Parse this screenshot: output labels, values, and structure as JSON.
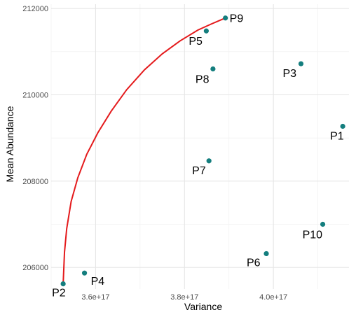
{
  "chart_data": {
    "type": "scatter",
    "xlabel": "Variance",
    "ylabel": "Mean Abundance",
    "xlim": [
      3.5e+17,
      4.17e+17
    ],
    "ylim": [
      205500,
      212100
    ],
    "x_ticks": [
      3.6e+17,
      3.8e+17,
      4e+17
    ],
    "x_tick_labels": [
      "3.6e+17",
      "3.8e+17",
      "4.0e+17"
    ],
    "y_ticks": [
      206000,
      208000,
      210000,
      212000
    ],
    "y_tick_labels": [
      "206000",
      "208000",
      "210000",
      "212000"
    ],
    "grid": true,
    "points": [
      {
        "label": "P1",
        "x": 4.156e+17,
        "y": 209270
      },
      {
        "label": "P2",
        "x": 3.527e+17,
        "y": 205620
      },
      {
        "label": "P3",
        "x": 4.062e+17,
        "y": 210720
      },
      {
        "label": "P4",
        "x": 3.575e+17,
        "y": 205870
      },
      {
        "label": "P5",
        "x": 3.849e+17,
        "y": 211480
      },
      {
        "label": "P6",
        "x": 3.984e+17,
        "y": 206320
      },
      {
        "label": "P7",
        "x": 3.855e+17,
        "y": 208470
      },
      {
        "label": "P8",
        "x": 3.864e+17,
        "y": 210600
      },
      {
        "label": "P9",
        "x": 3.892e+17,
        "y": 211780
      },
      {
        "label": "P10",
        "x": 4.111e+17,
        "y": 207000
      }
    ],
    "curve": {
      "x": [
        3.527e+17,
        3.53e+17,
        3.535e+17,
        3.545e+17,
        3.56e+17,
        3.58e+17,
        3.605e+17,
        3.635e+17,
        3.67e+17,
        3.71e+17,
        3.75e+17,
        3.79e+17,
        3.83e+17,
        3.86e+17,
        3.892e+17
      ],
      "y": [
        205620,
        206350,
        206900,
        207530,
        208080,
        208620,
        209120,
        209620,
        210120,
        210580,
        210950,
        211250,
        211500,
        211640,
        211780
      ]
    },
    "colors": {
      "point": "#147e7e",
      "curve": "#e41a1c",
      "grid_major": "#e6e6e6",
      "grid_minor": "#f2f2f2"
    }
  }
}
